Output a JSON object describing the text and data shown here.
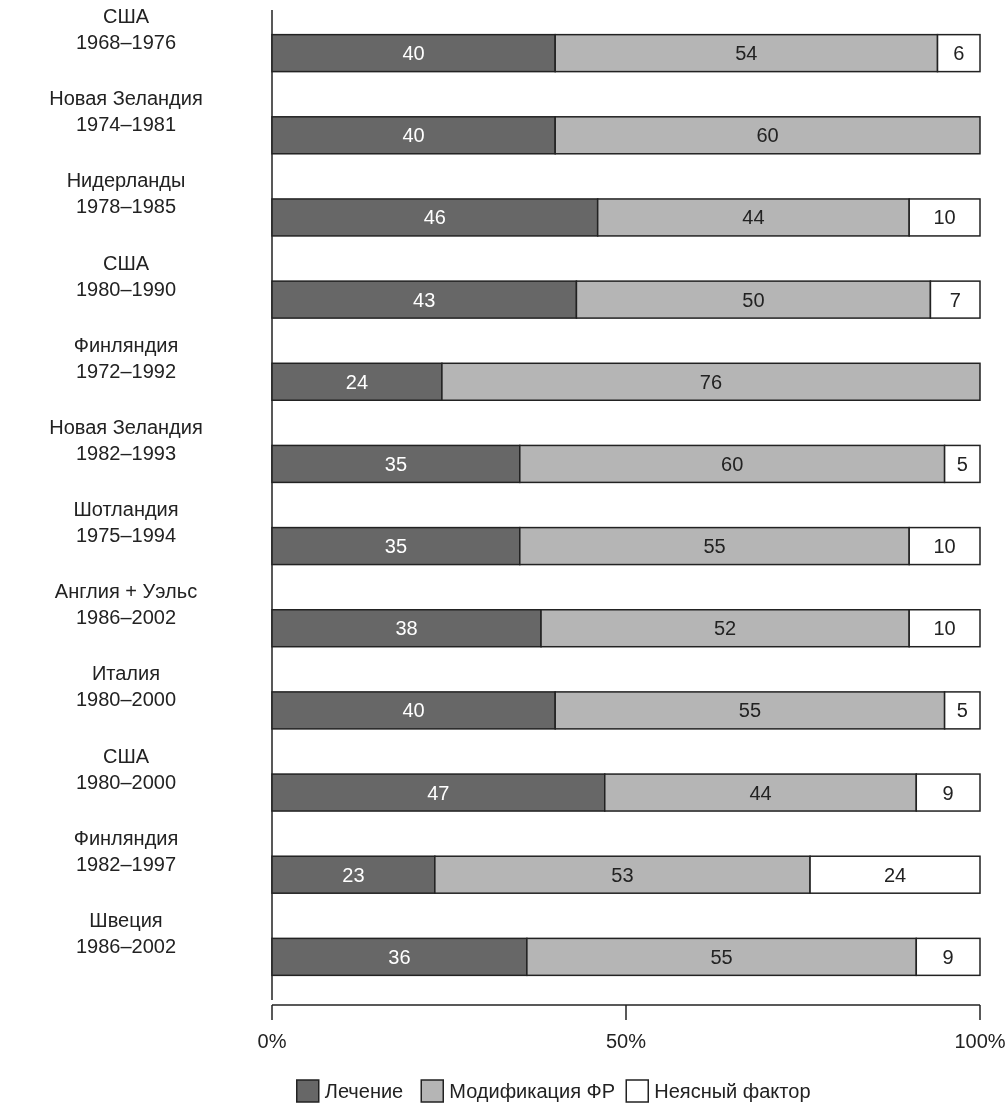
{
  "chart_data": {
    "type": "bar",
    "orientation": "horizontal",
    "stacked": true,
    "data_labels": true,
    "legend": "bottom",
    "grid": false,
    "categories": [
      "США 1968–1976",
      "Новая Зеландия 1974–1981",
      "Нидерланды 1978–1985",
      "США 1980–1990",
      "Финляндия 1972–1992",
      "Новая Зеландия 1982–1993",
      "Шотландия 1975–1994",
      "Англия + Уэльс 1986–2002",
      "Италия 1980–2000",
      "США 1980–2000",
      "Финляндия 1982–1997",
      "Швеция 1986–2002"
    ],
    "series": [
      {
        "name": "Лечение",
        "color": "#676767",
        "values": [
          40,
          40,
          46,
          43,
          24,
          35,
          35,
          38,
          40,
          47,
          23,
          36
        ]
      },
      {
        "name": "Модификация ФР",
        "color": "#b5b5b5",
        "values": [
          54,
          60,
          44,
          50,
          76,
          60,
          55,
          52,
          55,
          44,
          53,
          55
        ]
      },
      {
        "name": "Неясный фактор",
        "color": "#ffffff",
        "values": [
          6,
          null,
          10,
          7,
          null,
          5,
          10,
          10,
          5,
          9,
          24,
          9
        ]
      }
    ],
    "xlim": [
      0,
      100
    ],
    "xticks": [
      {
        "value": 0,
        "label": "0%"
      },
      {
        "value": 50,
        "label": "50%"
      },
      {
        "value": 100,
        "label": "100%"
      }
    ]
  }
}
